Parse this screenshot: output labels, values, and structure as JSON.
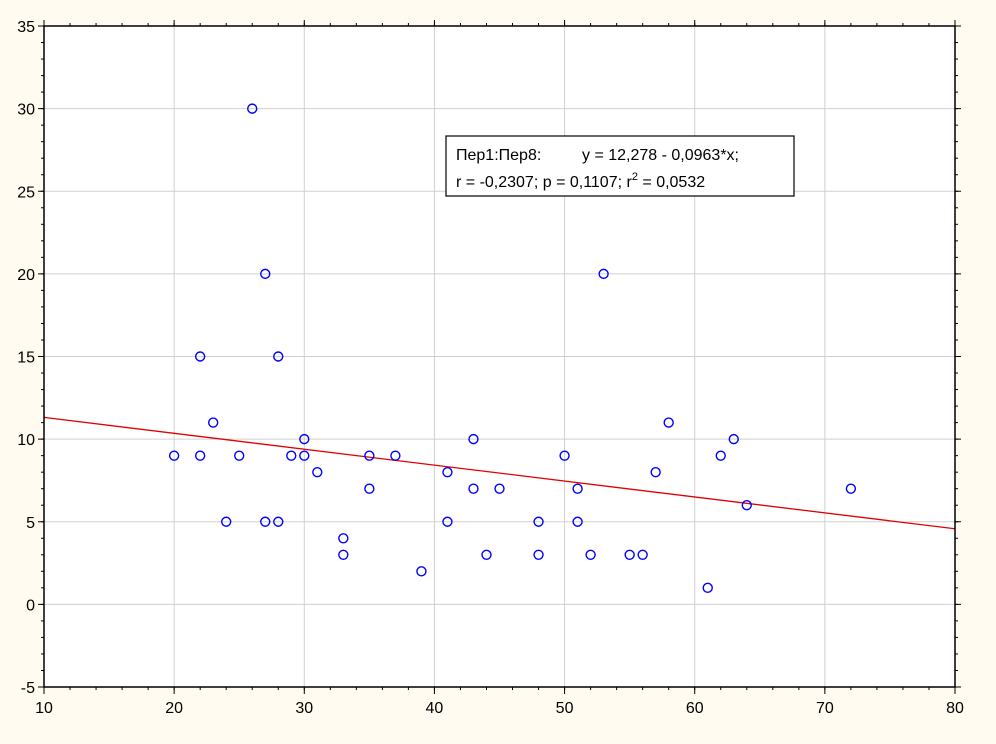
{
  "chart_data": {
    "type": "scatter",
    "title": "",
    "xlabel": "",
    "ylabel": "",
    "xlim": [
      10,
      80
    ],
    "ylim": [
      -5,
      35
    ],
    "x_ticks": [
      10,
      20,
      30,
      40,
      50,
      60,
      70,
      80
    ],
    "y_ticks": [
      -5,
      0,
      5,
      10,
      15,
      20,
      25,
      30,
      35
    ],
    "grid": true,
    "marker": "open-circle",
    "point_color": "#0000ff",
    "line_color": "#e00000",
    "series": [
      {
        "points": [
          {
            "x": 20,
            "y": 9
          },
          {
            "x": 22,
            "y": 15
          },
          {
            "x": 22,
            "y": 9
          },
          {
            "x": 23,
            "y": 11
          },
          {
            "x": 24,
            "y": 5
          },
          {
            "x": 25,
            "y": 9
          },
          {
            "x": 26,
            "y": 30
          },
          {
            "x": 27,
            "y": 20
          },
          {
            "x": 27,
            "y": 5
          },
          {
            "x": 28,
            "y": 15
          },
          {
            "x": 28,
            "y": 5
          },
          {
            "x": 29,
            "y": 9
          },
          {
            "x": 30,
            "y": 10
          },
          {
            "x": 30,
            "y": 9
          },
          {
            "x": 31,
            "y": 8
          },
          {
            "x": 33,
            "y": 4
          },
          {
            "x": 33,
            "y": 3
          },
          {
            "x": 35,
            "y": 9
          },
          {
            "x": 35,
            "y": 7
          },
          {
            "x": 37,
            "y": 9
          },
          {
            "x": 39,
            "y": 2
          },
          {
            "x": 41,
            "y": 8
          },
          {
            "x": 41,
            "y": 5
          },
          {
            "x": 43,
            "y": 10
          },
          {
            "x": 43,
            "y": 7
          },
          {
            "x": 44,
            "y": 3
          },
          {
            "x": 45,
            "y": 7
          },
          {
            "x": 48,
            "y": 5
          },
          {
            "x": 48,
            "y": 3
          },
          {
            "x": 50,
            "y": 9
          },
          {
            "x": 51,
            "y": 7
          },
          {
            "x": 51,
            "y": 5
          },
          {
            "x": 52,
            "y": 3
          },
          {
            "x": 53,
            "y": 20
          },
          {
            "x": 55,
            "y": 3
          },
          {
            "x": 56,
            "y": 3
          },
          {
            "x": 57,
            "y": 8
          },
          {
            "x": 58,
            "y": 11
          },
          {
            "x": 61,
            "y": 1
          },
          {
            "x": 62,
            "y": 9
          },
          {
            "x": 63,
            "y": 10
          },
          {
            "x": 64,
            "y": 6
          },
          {
            "x": 72,
            "y": 7
          }
        ]
      }
    ],
    "regression": {
      "intercept": 12.278,
      "slope": -0.0963
    },
    "annotation": {
      "line1_prefix": "Пер1:Пер8:",
      "line1_eq": "y = 12,278 - 0,0963*x;",
      "line2_main": "r = -0,2307; p = 0,1107; r",
      "line2_sup": "2",
      "line2_end": " = 0,0532",
      "placement": "top-center"
    }
  }
}
